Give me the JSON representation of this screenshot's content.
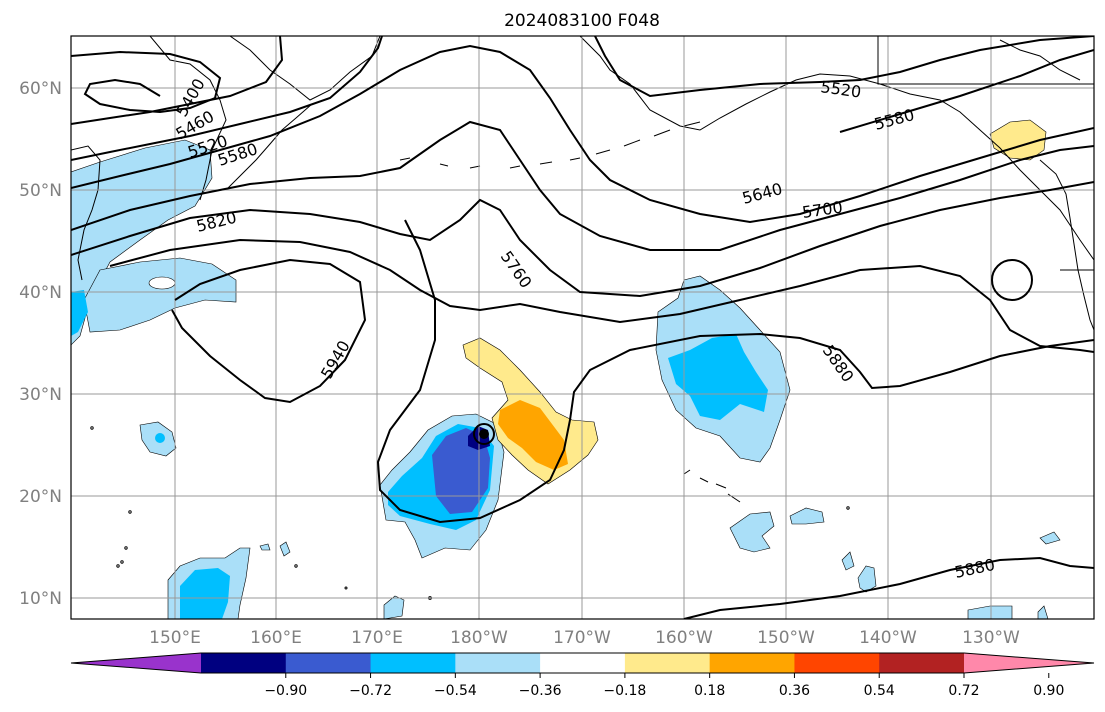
{
  "title": "2024083100 F048",
  "lat_labels": [
    "10°N",
    "20°N",
    "30°N",
    "40°N",
    "50°N",
    "60°N"
  ],
  "lon_labels": [
    "150°E",
    "160°E",
    "170°E",
    "180°W",
    "170°W",
    "160°W",
    "150°W",
    "140°W",
    "130°W"
  ],
  "map": {
    "lon_range": [
      140,
      242
    ],
    "lat_range": [
      8,
      65
    ],
    "grid": true,
    "contour_labels": [
      "5400",
      "5460",
      "5520",
      "5580",
      "5820",
      "5760",
      "5940",
      "5640",
      "5700",
      "5880",
      "5520",
      "5580",
      "5880"
    ]
  },
  "colorbar": {
    "ticks": [
      "−0.90",
      "−0.72",
      "−0.54",
      "−0.36",
      "−0.18",
      "0.18",
      "0.36",
      "0.54",
      "0.72",
      "0.90"
    ],
    "colors": [
      "#9933cc",
      "#000080",
      "#3a5bd0",
      "#00bfff",
      "#aadff8",
      "#ffffff",
      "#ffea8c",
      "#ffa500",
      "#ff4500",
      "#b22222",
      "#ff88aa"
    ]
  },
  "colors": {
    "light_blue": "#aadff8",
    "cyan": "#00bfff",
    "royal_blue": "#3a5bd0",
    "navy": "#000080",
    "light_yellow": "#ffea8c",
    "orange": "#ffa500",
    "grid": "#999999"
  }
}
